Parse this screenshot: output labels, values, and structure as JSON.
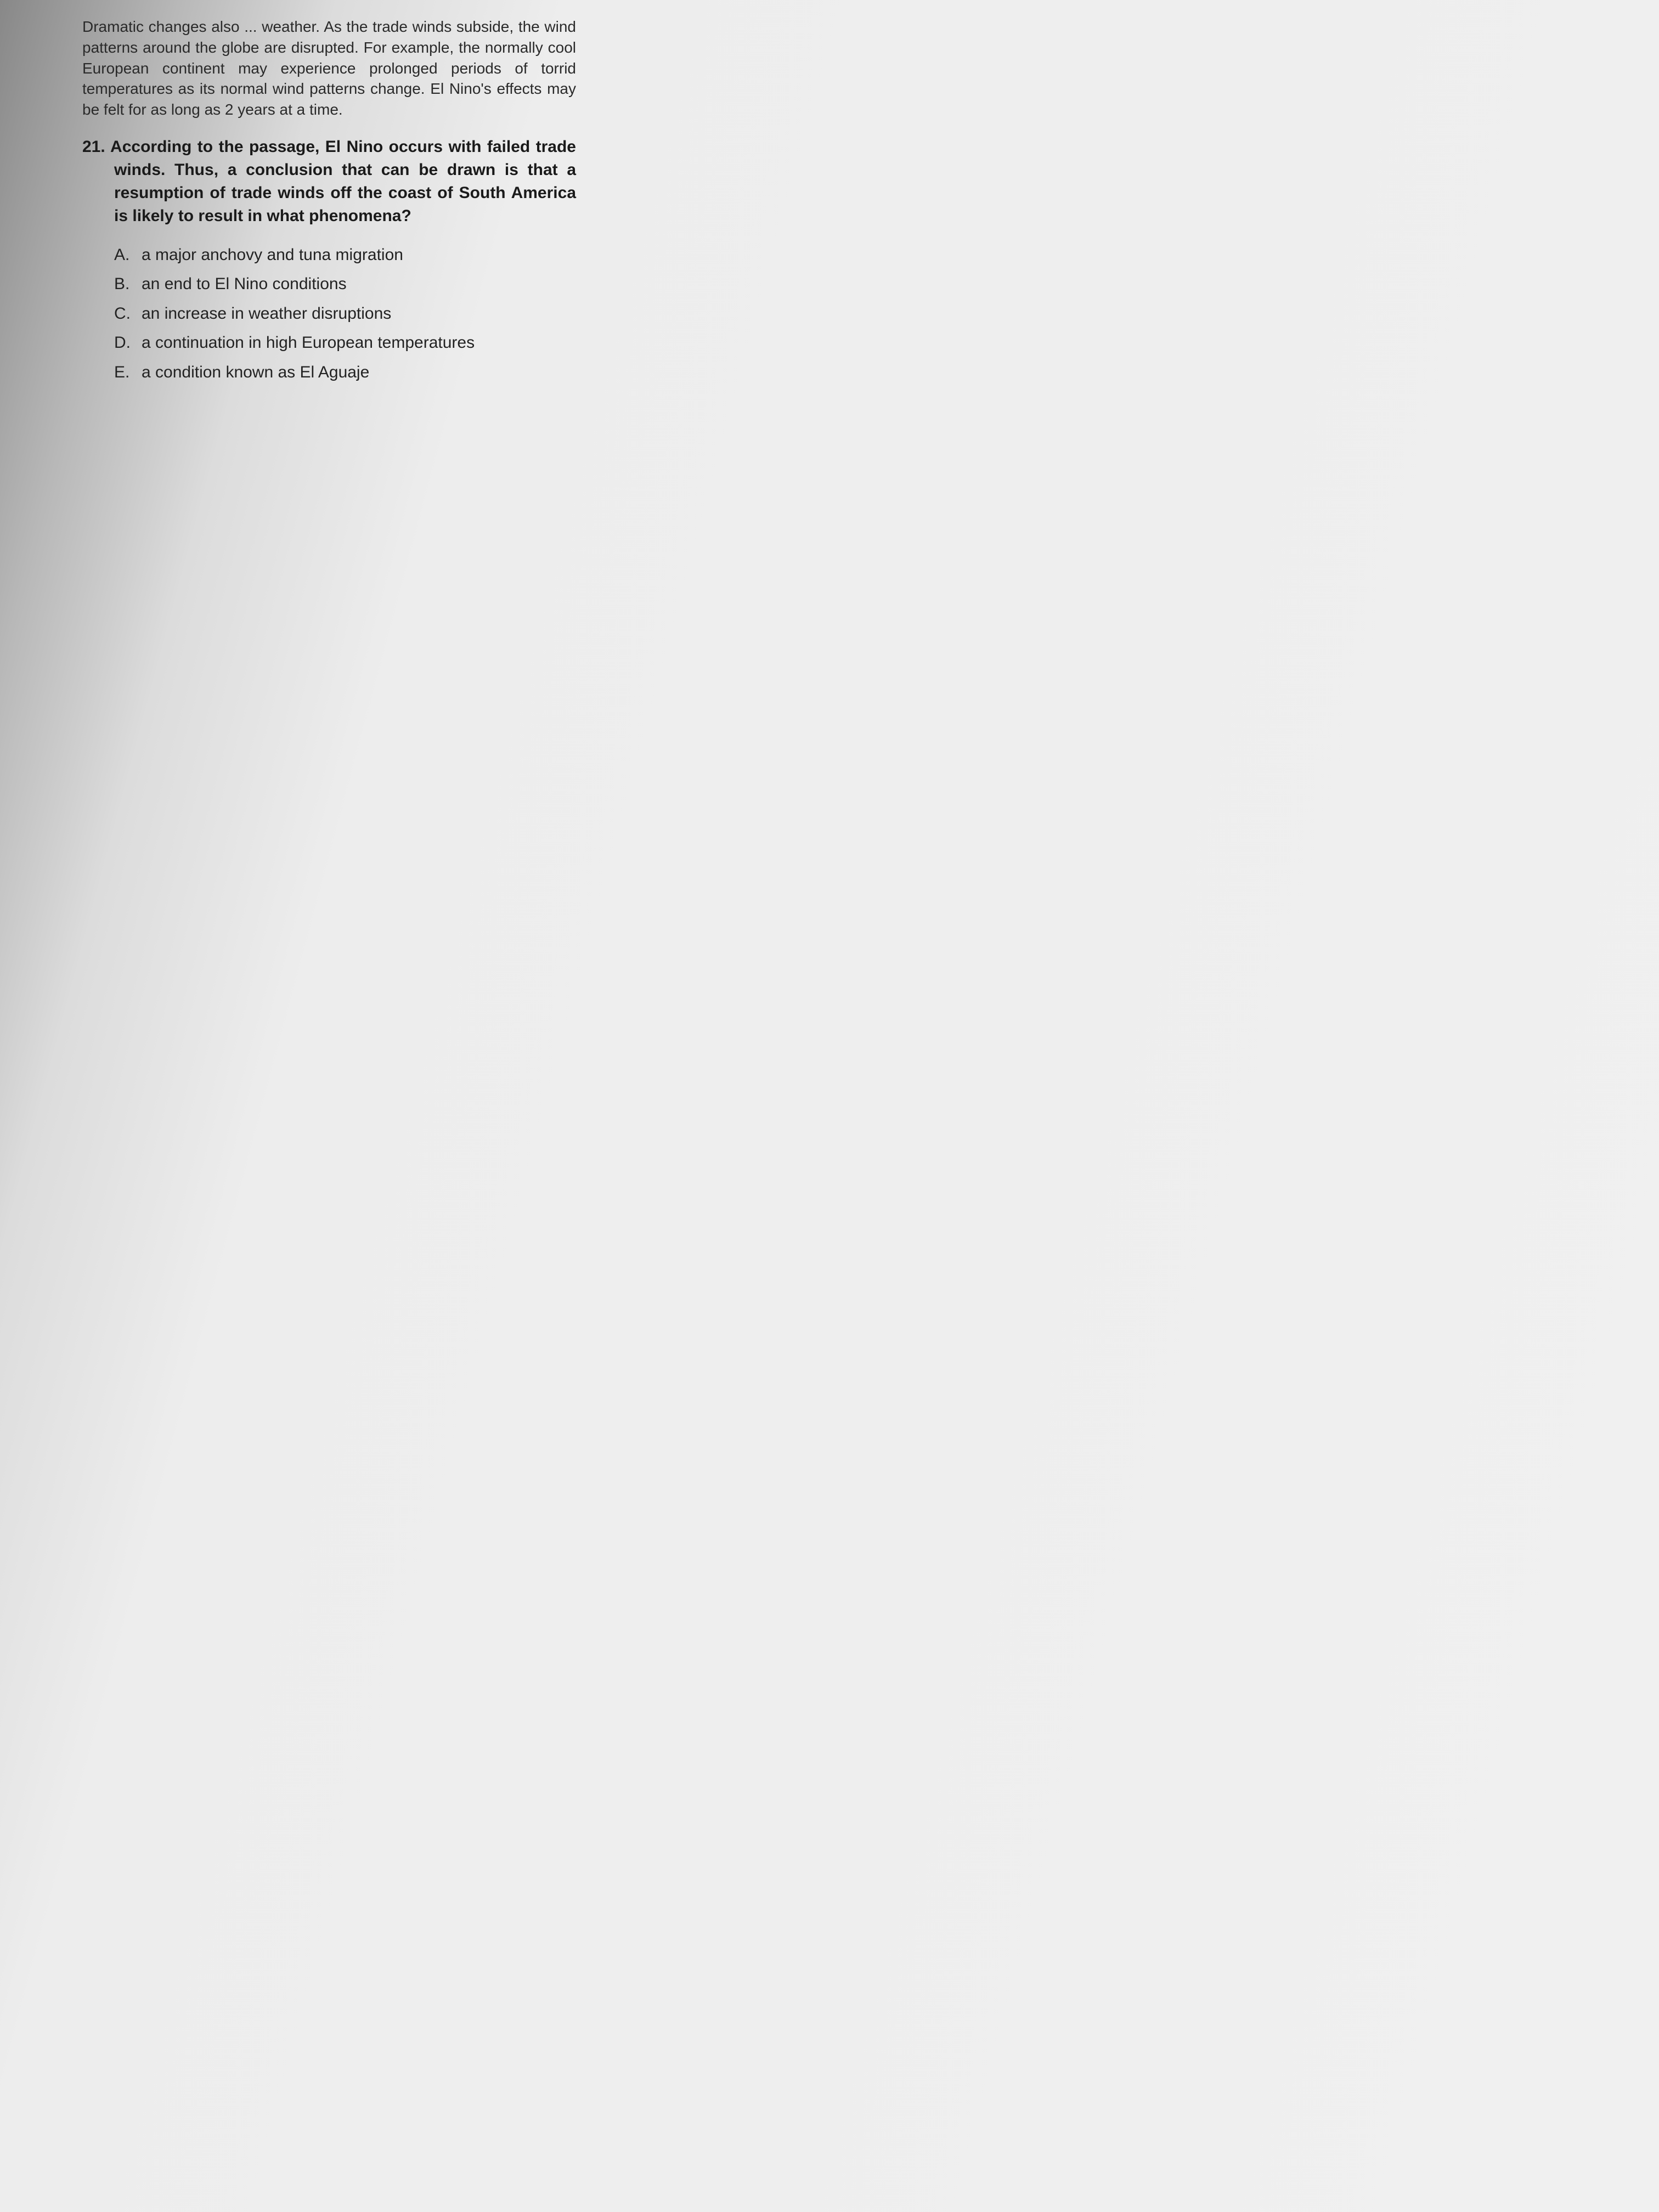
{
  "passage": {
    "text": "Dramatic changes also ... weather. As the trade winds subside, the wind patterns around the globe are disrupted. For example, the normally cool European continent may experience prolonged periods of torrid temperatures as its normal wind patterns change. El Nino's effects may be felt for as long as 2 years at a time.",
    "font_size": 28,
    "color": "#2a2a2a"
  },
  "question": {
    "number": "21.",
    "text": "According to the passage, El Nino occurs with failed trade winds. Thus, a conclusion that can be drawn is that a resumption of trade winds off the coast of South America is likely to result in what phenomena?",
    "font_size": 30,
    "font_weight": "bold",
    "color": "#1a1a1a"
  },
  "options": [
    {
      "letter": "A.",
      "text": "a major anchovy and tuna migration"
    },
    {
      "letter": "B.",
      "text": "an end to El Nino conditions"
    },
    {
      "letter": "C.",
      "text": "an increase in weather disruptions"
    },
    {
      "letter": "D.",
      "text": "a continuation in high European temperatures"
    },
    {
      "letter": "E.",
      "text": "a condition known as El Aguaje"
    }
  ],
  "styling": {
    "background_gradient": [
      "#888888",
      "#b8b8b8",
      "#dcdcdc",
      "#ededed",
      "#f0f0f0"
    ],
    "option_font_size": 30,
    "option_color": "#222222",
    "line_height": 1.4
  }
}
